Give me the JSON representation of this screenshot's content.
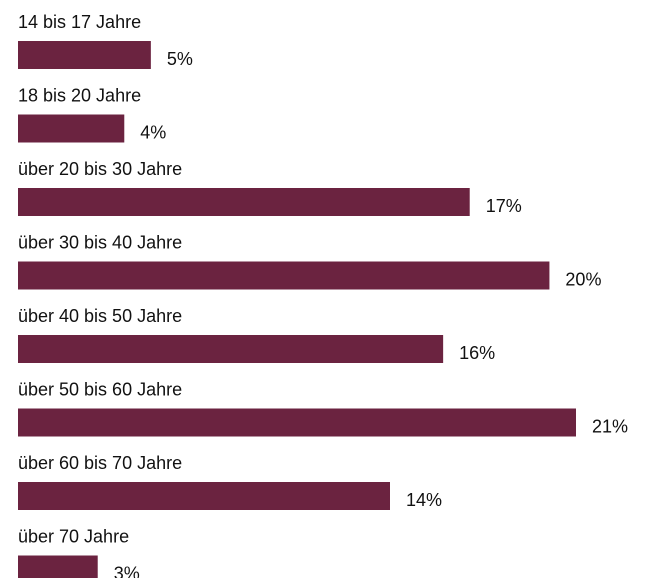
{
  "chart_data": {
    "type": "bar",
    "categories": [
      "14 bis 17 Jahre",
      "18 bis 20 Jahre",
      "über 20 bis 30 Jahre",
      "über 30 bis 40 Jahre",
      "über 40 bis 50 Jahre",
      "über 50 bis 60 Jahre",
      "über 60 bis 70 Jahre",
      "über 70 Jahre"
    ],
    "values": [
      5,
      4,
      17,
      20,
      16,
      21,
      14,
      3
    ],
    "value_labels": [
      "5%",
      "4%",
      "17%",
      "20%",
      "16%",
      "21%",
      "14%",
      "3%"
    ],
    "color": "#6b2340"
  }
}
